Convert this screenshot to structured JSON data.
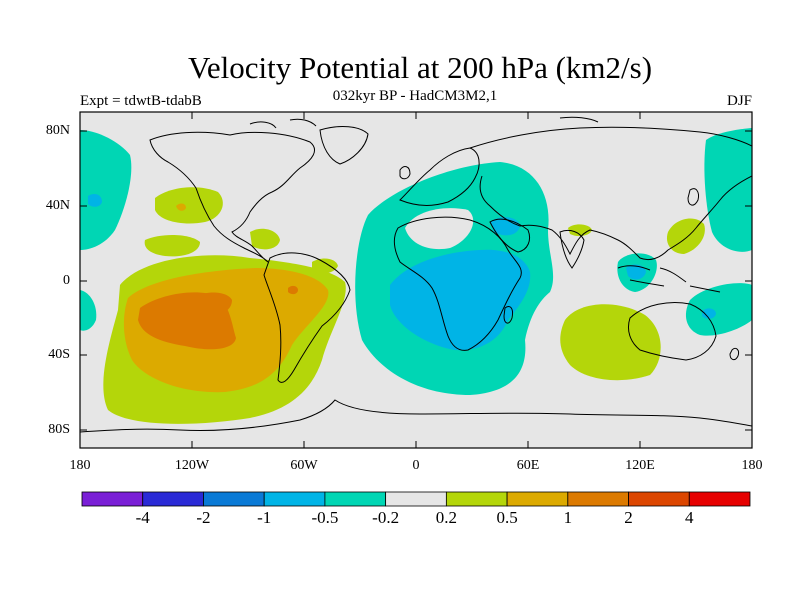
{
  "title": "Velocity Potential at 200 hPa (km2/s)",
  "subtitle": "032kyr BP - HadCM3M2,1",
  "experiment": "Expt = tdwtB-tdabB",
  "season": "DJF",
  "latitude_labels": [
    "80N",
    "40N",
    "0",
    "40S",
    "80S"
  ],
  "longitude_labels": [
    "180",
    "120W",
    "60W",
    "0",
    "60E",
    "120E",
    "180"
  ],
  "colorbar": {
    "colors": [
      "#7a1fd6",
      "#2a2ad6",
      "#0a7ad6",
      "#00b4e6",
      "#00d6b4",
      "#e6e6e6",
      "#b4d60a",
      "#dcaa00",
      "#dc7a00",
      "#dc4600",
      "#e60000"
    ],
    "labels": [
      "-4",
      "-2",
      "-1",
      "-0.5",
      "-0.2",
      "0.2",
      "0.5",
      "1",
      "2",
      "4"
    ]
  },
  "colors": {
    "ocean_background": "#e6e6e6",
    "land_outline": "#000000"
  }
}
